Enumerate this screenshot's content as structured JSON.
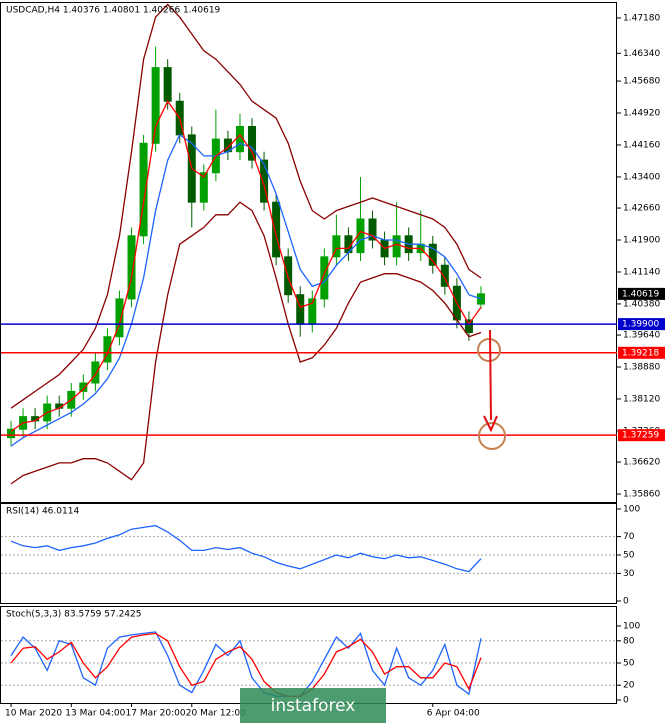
{
  "chart_data": [
    {
      "type": "candlestick",
      "title": "USDCAD,H4  1.40376 1.40801 1.40266 1.40619",
      "categories": [
        "10 Mar 2020",
        null,
        null,
        null,
        null,
        "13 Mar 04:00",
        null,
        null,
        null,
        null,
        "17 Mar 20:00",
        null,
        null,
        null,
        null,
        "20 Mar 12:00",
        null,
        null,
        null,
        null,
        null,
        null,
        null,
        null,
        null,
        null,
        null,
        null,
        null,
        null,
        null,
        null,
        null,
        null,
        null,
        "6 Apr 04:00",
        null,
        null,
        null,
        null
      ],
      "open": [
        1.372,
        1.374,
        1.377,
        1.376,
        1.38,
        1.379,
        1.383,
        1.385,
        1.39,
        1.396,
        1.405,
        1.42,
        1.442,
        1.46,
        1.452,
        1.444,
        1.428,
        1.435,
        1.443,
        1.44,
        1.446,
        1.438,
        1.428,
        1.415,
        1.406,
        1.399,
        1.405,
        1.415,
        1.42,
        1.416,
        1.424,
        1.419,
        1.415,
        1.42,
        1.416,
        1.418,
        1.413,
        1.408,
        1.4,
        1.40376
      ],
      "high": [
        1.376,
        1.379,
        1.379,
        1.382,
        1.382,
        1.385,
        1.387,
        1.392,
        1.398,
        1.407,
        1.422,
        1.444,
        1.465,
        1.462,
        1.454,
        1.446,
        1.437,
        1.45,
        1.445,
        1.449,
        1.448,
        1.44,
        1.43,
        1.417,
        1.408,
        1.407,
        1.417,
        1.425,
        1.422,
        1.434,
        1.426,
        1.421,
        1.428,
        1.422,
        1.426,
        1.42,
        1.415,
        1.41,
        1.402,
        1.40801
      ],
      "low": [
        1.37,
        1.372,
        1.374,
        1.374,
        1.377,
        1.377,
        1.381,
        1.383,
        1.388,
        1.394,
        1.403,
        1.418,
        1.44,
        1.45,
        1.442,
        1.422,
        1.426,
        1.433,
        1.438,
        1.438,
        1.436,
        1.426,
        1.413,
        1.404,
        1.396,
        1.397,
        1.403,
        1.413,
        1.414,
        1.414,
        1.417,
        1.413,
        1.413,
        1.414,
        1.414,
        1.411,
        1.406,
        1.398,
        1.395,
        1.40266
      ],
      "close": [
        1.374,
        1.377,
        1.376,
        1.38,
        1.379,
        1.383,
        1.385,
        1.39,
        1.396,
        1.405,
        1.42,
        1.442,
        1.46,
        1.452,
        1.444,
        1.428,
        1.435,
        1.443,
        1.44,
        1.446,
        1.438,
        1.428,
        1.415,
        1.406,
        1.399,
        1.405,
        1.415,
        1.42,
        1.416,
        1.424,
        1.419,
        1.415,
        1.42,
        1.416,
        1.418,
        1.413,
        1.408,
        1.4,
        1.397,
        1.40619
      ],
      "up_color": "#00a000",
      "down_color": "#005a00",
      "series": [
        {
          "color": "#8b0000",
          "values": [
            1.379,
            1.381,
            1.383,
            1.385,
            1.387,
            1.39,
            1.393,
            1.398,
            1.406,
            1.42,
            1.44,
            1.462,
            1.472,
            1.475,
            1.472,
            1.468,
            1.464,
            1.462,
            1.459,
            1.456,
            1.452,
            1.45,
            1.448,
            1.442,
            1.433,
            1.426,
            1.424,
            1.426,
            1.427,
            1.428,
            1.429,
            1.428,
            1.427,
            1.426,
            1.425,
            1.424,
            1.422,
            1.418,
            1.412,
            1.41
          ]
        },
        {
          "color": "#8b0000",
          "values": [
            1.361,
            1.363,
            1.364,
            1.365,
            1.366,
            1.366,
            1.367,
            1.367,
            1.366,
            1.364,
            1.362,
            1.366,
            1.39,
            1.406,
            1.418,
            1.42,
            1.422,
            1.425,
            1.425,
            1.428,
            1.426,
            1.42,
            1.41,
            1.399,
            1.39,
            1.391,
            1.394,
            1.398,
            1.404,
            1.409,
            1.41,
            1.411,
            1.411,
            1.41,
            1.409,
            1.407,
            1.404,
            1.4,
            1.396,
            1.397
          ]
        },
        {
          "color": "#1e64ff",
          "values": [
            1.37,
            1.372,
            1.3735,
            1.375,
            1.3765,
            1.378,
            1.38,
            1.3825,
            1.386,
            1.391,
            1.399,
            1.41,
            1.426,
            1.438,
            1.444,
            1.442,
            1.439,
            1.439,
            1.44,
            1.442,
            1.441,
            1.437,
            1.43,
            1.421,
            1.412,
            1.408,
            1.409,
            1.413,
            1.416,
            1.419,
            1.42,
            1.419,
            1.419,
            1.418,
            1.418,
            1.417,
            1.415,
            1.411,
            1.406,
            1.405
          ]
        },
        {
          "color": "#ff0000",
          "values": [
            1.3735,
            1.3755,
            1.376,
            1.378,
            1.379,
            1.381,
            1.3835,
            1.387,
            1.392,
            1.399,
            1.41,
            1.428,
            1.446,
            1.452,
            1.448,
            1.436,
            1.434,
            1.439,
            1.441,
            1.444,
            1.44,
            1.432,
            1.42,
            1.41,
            1.403,
            1.404,
            1.411,
            1.417,
            1.417,
            1.421,
            1.42,
            1.417,
            1.418,
            1.417,
            1.417,
            1.414,
            1.41,
            1.404,
            1.399,
            1.403
          ]
        }
      ],
      "levels": [
        {
          "value": 1.399,
          "label": "1.39900",
          "color": "#0000cd"
        },
        {
          "value": 1.39218,
          "label": "1.39218",
          "color": "#ff0000"
        },
        {
          "value": 1.37259,
          "label": "1.37259",
          "color": "#ff0000"
        }
      ],
      "last_price": {
        "value": 1.40619,
        "label": "1.40619"
      },
      "ylim": [
        1.3567,
        1.4756
      ],
      "yticks": [
        {
          "value": 1.4718,
          "label": "1.47180"
        },
        {
          "value": 1.4634,
          "label": "1.46340"
        },
        {
          "value": 1.4568,
          "label": "1.45680"
        },
        {
          "value": 1.4492,
          "label": "1.44920"
        },
        {
          "value": 1.4416,
          "label": "1.44160"
        },
        {
          "value": 1.434,
          "label": "1.43400"
        },
        {
          "value": 1.4266,
          "label": "1.42660"
        },
        {
          "value": 1.419,
          "label": "1.41900"
        },
        {
          "value": 1.4114,
          "label": "1.41140"
        },
        {
          "value": 1.4038,
          "label": "1.40380"
        },
        {
          "value": 1.3964,
          "label": "1.39640"
        },
        {
          "value": 1.3888,
          "label": "1.38880"
        },
        {
          "value": 1.3812,
          "label": "1.38120"
        },
        {
          "value": 1.3736,
          "label": "1.37360"
        },
        {
          "value": 1.3662,
          "label": "1.36620"
        },
        {
          "value": 1.3586,
          "label": "1.35860"
        }
      ],
      "watermark": "instaforex"
    },
    {
      "type": "line",
      "title": "RSI(14) 46.0114",
      "series": [
        {
          "color": "#1e64ff",
          "values": [
            65,
            60,
            58,
            60,
            55,
            58,
            60,
            63,
            68,
            72,
            78,
            80,
            82,
            75,
            66,
            55,
            55,
            58,
            56,
            58,
            52,
            48,
            42,
            38,
            35,
            40,
            45,
            50,
            47,
            52,
            48,
            46,
            50,
            47,
            48,
            44,
            40,
            35,
            32,
            46.0114
          ]
        }
      ],
      "ylim": [
        0,
        100
      ],
      "yticks": [
        0,
        30,
        50,
        70,
        100
      ],
      "grid": true
    },
    {
      "type": "line",
      "title": "Stoch(5,3,3) 83.5759 57.2425",
      "series": [
        {
          "color": "#1e64ff",
          "values": [
            60,
            85,
            70,
            40,
            80,
            75,
            30,
            20,
            70,
            85,
            88,
            90,
            92,
            60,
            20,
            10,
            40,
            75,
            60,
            80,
            30,
            10,
            5,
            5,
            5,
            25,
            55,
            85,
            70,
            90,
            40,
            20,
            70,
            30,
            20,
            40,
            75,
            20,
            8,
            83.5759
          ]
        },
        {
          "color": "#ff0000",
          "values": [
            50,
            70,
            72,
            55,
            65,
            78,
            50,
            30,
            45,
            70,
            85,
            88,
            90,
            80,
            45,
            20,
            25,
            55,
            65,
            72,
            55,
            25,
            10,
            5,
            5,
            15,
            35,
            65,
            72,
            82,
            65,
            35,
            45,
            45,
            30,
            30,
            50,
            45,
            15,
            57.2425
          ]
        }
      ],
      "ylim": [
        0,
        100
      ],
      "yticks": [
        0,
        20,
        50,
        80,
        100
      ],
      "grid": true
    }
  ]
}
